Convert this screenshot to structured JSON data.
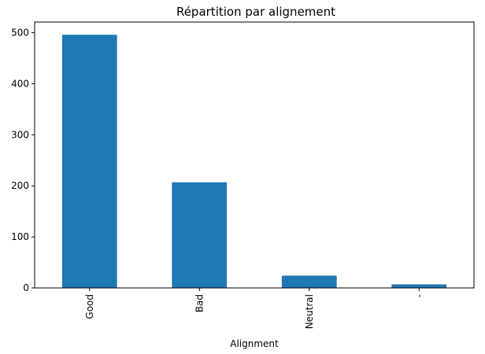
{
  "chart_data": {
    "type": "bar",
    "title": "Répartition par alignement",
    "xlabel": "Alignment",
    "ylabel": "",
    "categories": [
      "Good",
      "Bad",
      "Neutral",
      "-"
    ],
    "values": [
      496,
      207,
      24,
      7
    ],
    "ylim": [
      0,
      521
    ],
    "yticks": [
      0,
      100,
      200,
      300,
      400,
      500
    ],
    "bar_color": "#1f77b4",
    "grid": false,
    "legend": "none",
    "x_tick_rotation": "vertical"
  }
}
